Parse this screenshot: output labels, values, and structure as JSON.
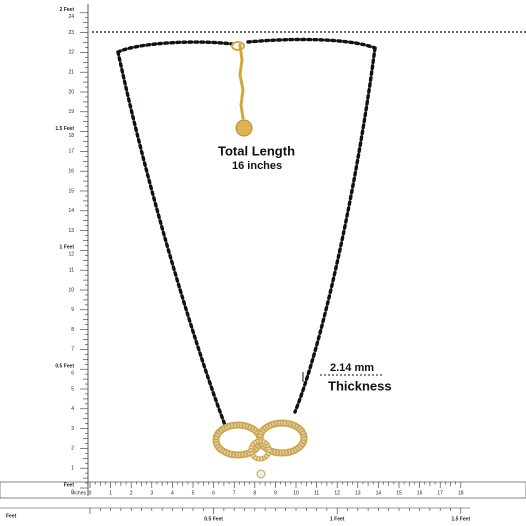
{
  "annotations": {
    "total_length": "Total  Length",
    "length_value": "16 inches",
    "thickness_value": "2.14 mm",
    "thickness_label": "Thickness"
  },
  "left_ruler": {
    "feet_labels": [
      "Feet",
      "0.5 Feet",
      "1 Feet",
      "1.5 Feet",
      "2 Feet"
    ],
    "inch_labels": [
      0,
      1,
      2,
      3,
      4,
      5,
      6,
      7,
      8,
      9,
      10,
      11,
      12,
      13,
      14,
      15,
      16,
      17,
      18,
      19,
      20,
      21,
      22,
      23,
      24
    ]
  },
  "bottom_ruler": {
    "unit_feet": "Feet",
    "unit_inches": "Inches",
    "feet_labels": [
      "0.5 Feet",
      "1 Feet",
      "1.5 Feet"
    ],
    "inch_labels": [
      0,
      1,
      2,
      3,
      4,
      5,
      6,
      7,
      8,
      9,
      10,
      11,
      12,
      13,
      14,
      15,
      16,
      17,
      18
    ]
  }
}
